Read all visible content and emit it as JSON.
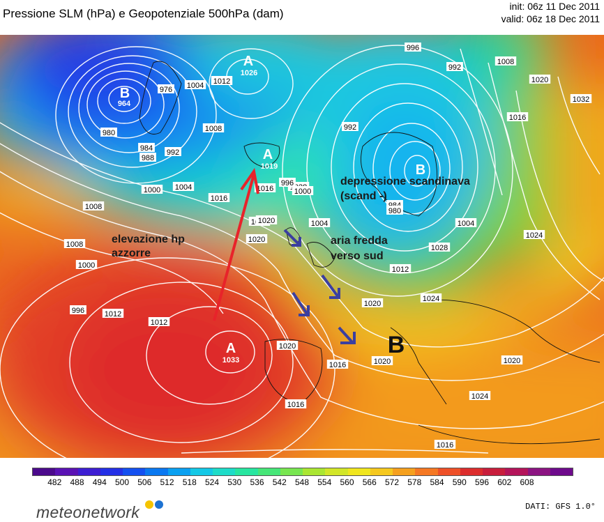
{
  "title": "Pressione SLM (hPa) e Geopotenziale 500hPa (dam)",
  "init": "init: 06z 11 Dec 2011",
  "valid": "valid: 06z 18 Dec 2011",
  "pressure_centers": {
    "b_greenland": {
      "letter": "B",
      "value": "964"
    },
    "a_north": {
      "letter": "A",
      "value": "1026"
    },
    "a_iceland": {
      "letter": "A",
      "value": "1019"
    },
    "b_scandinavia": {
      "letter": "B",
      "value": ""
    },
    "a_azores": {
      "letter": "A",
      "value": "1033"
    },
    "b_italy": {
      "letter": "B"
    }
  },
  "isobar_labels": [
    "996",
    "992",
    "1008",
    "1020",
    "1032",
    "1004",
    "1012",
    "976",
    "1008",
    "980",
    "984",
    "992",
    "988",
    "1000",
    "1004",
    "1008",
    "1016",
    "1016",
    "1028",
    "996",
    "1000",
    "984",
    "992",
    "1024",
    "1020",
    "980",
    "1004",
    "1004",
    "1024",
    "1016",
    "1008",
    "1000",
    "996",
    "1012",
    "1012",
    "1020",
    "1016",
    "1016",
    "1020",
    "1024",
    "1028",
    "1012",
    "1020",
    "1024",
    "1016",
    "1020",
    "1020"
  ],
  "annotations": {
    "azzorre": [
      "elevazione hp",
      "azzorre"
    ],
    "scandinava": [
      "depressione scandinava",
      "(scand -)"
    ],
    "aria_fredda": [
      "aria fredda",
      "verso sud"
    ]
  },
  "legend": {
    "ticks": [
      "482",
      "488",
      "494",
      "500",
      "506",
      "512",
      "518",
      "524",
      "530",
      "536",
      "542",
      "548",
      "554",
      "560",
      "566",
      "572",
      "578",
      "584",
      "590",
      "596",
      "602",
      "608"
    ],
    "colors": [
      "#4b0a8c",
      "#5a12b4",
      "#3d1ed2",
      "#2430e6",
      "#1450f0",
      "#0a78f0",
      "#0aa0f0",
      "#14c8e6",
      "#1edcc8",
      "#28e6a0",
      "#46e678",
      "#78e650",
      "#aae632",
      "#d2e628",
      "#f0e61e",
      "#f5c81e",
      "#f5a01e",
      "#f57823",
      "#ee5028",
      "#dc2d2d",
      "#c81e3c",
      "#b4145a",
      "#8c1482",
      "#6e0a8c"
    ]
  },
  "branding": {
    "logo": "meteonetwork"
  },
  "source": "DATI:  GFS  1.0°"
}
